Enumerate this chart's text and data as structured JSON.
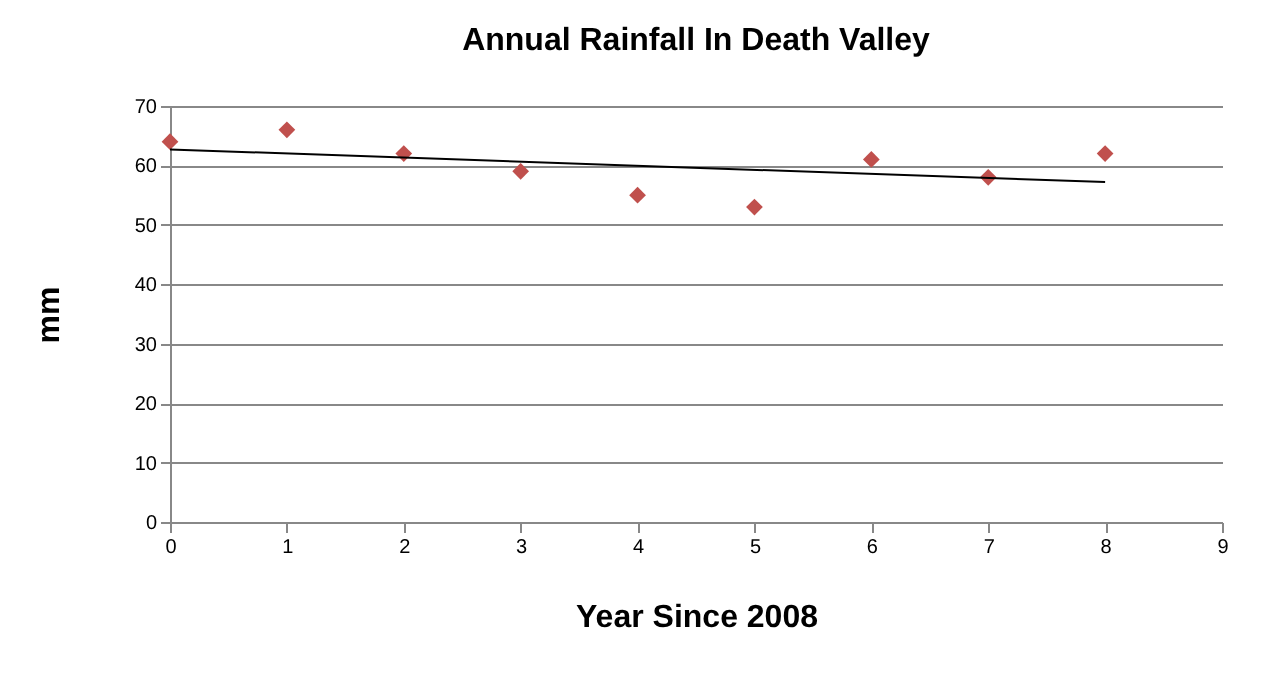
{
  "chart_data": {
    "type": "scatter",
    "title": "Annual Rainfall In Death Valley",
    "xlabel": "Year Since 2008",
    "ylabel": "mm",
    "x": [
      0,
      1,
      2,
      3,
      4,
      5,
      6,
      7,
      8
    ],
    "series": [
      {
        "type": "scatter",
        "color": "#c0504d",
        "marker": "diamond",
        "values": [
          64,
          66,
          62,
          59,
          55,
          53,
          61,
          58,
          62
        ]
      },
      {
        "type": "line",
        "color": "#000000",
        "x": [
          0,
          8
        ],
        "values": [
          62.7,
          57.2
        ]
      }
    ],
    "xlim": [
      0,
      9
    ],
    "xticks": [
      0,
      1,
      2,
      3,
      4,
      5,
      6,
      7,
      8,
      9
    ],
    "ylim": [
      0,
      70
    ],
    "yticks": [
      0,
      10,
      20,
      30,
      40,
      50,
      60,
      70
    ],
    "grid": "y"
  }
}
